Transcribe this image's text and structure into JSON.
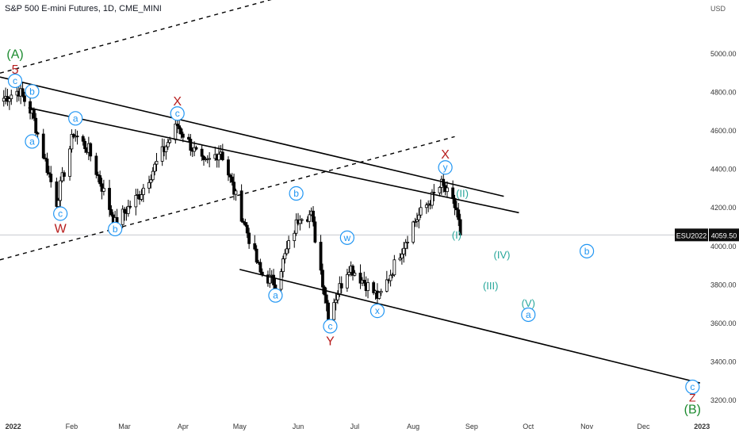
{
  "header": {
    "title": "S&P 500 E-mini Futures, 1D, CME_MINI"
  },
  "chart_data": {
    "type": "candlestick",
    "currency": "USD",
    "price_axis": {
      "ticks": [
        5000,
        4800,
        4600,
        4400,
        4200,
        4000,
        3800,
        3600,
        3400,
        3200
      ],
      "tick_labels": [
        "5000.00",
        "4800.00",
        "4600.00",
        "4400.00",
        "4200.00",
        "4000.00",
        "3800.00",
        "3600.00",
        "3400.00",
        "3200.00"
      ],
      "range": [
        3130,
        5280
      ]
    },
    "time_axis": {
      "labels": [
        {
          "text": "2022",
          "bold": true,
          "date": "2022-01-01"
        },
        {
          "text": "Feb",
          "date": "2022-02-01"
        },
        {
          "text": "Mar",
          "date": "2022-03-01"
        },
        {
          "text": "Apr",
          "date": "2022-04-01"
        },
        {
          "text": "May",
          "date": "2022-05-01"
        },
        {
          "text": "Jun",
          "date": "2022-06-01"
        },
        {
          "text": "Jul",
          "date": "2022-07-01"
        },
        {
          "text": "Aug",
          "date": "2022-08-01"
        },
        {
          "text": "Sep",
          "date": "2022-09-01"
        },
        {
          "text": "Oct",
          "date": "2022-10-01"
        },
        {
          "text": "Nov",
          "date": "2022-11-01"
        },
        {
          "text": "Dec",
          "date": "2022-12-01"
        },
        {
          "text": "2023",
          "bold": true,
          "date": "2023-01-01"
        }
      ],
      "range": [
        "2021-12-25",
        "2023-01-03"
      ]
    },
    "last_price": {
      "symbol": "ESU2022",
      "value": "4059.50",
      "price": 4059.5
    },
    "wave_points": [
      [
        "2021-12-27",
        4770
      ],
      [
        "2022-01-04",
        4810
      ],
      [
        "2022-01-11",
        4690
      ],
      [
        "2022-01-24",
        4230
      ],
      [
        "2022-02-02",
        4590
      ],
      [
        "2022-02-10",
        4500
      ],
      [
        "2022-02-24",
        4120
      ],
      [
        "2022-03-09",
        4270
      ],
      [
        "2022-03-29",
        4630
      ],
      [
        "2022-04-12",
        4420
      ],
      [
        "2022-04-21",
        4500
      ],
      [
        "2022-05-12",
        3860
      ],
      [
        "2022-05-20",
        3810
      ],
      [
        "2022-06-02",
        4170
      ],
      [
        "2022-06-08",
        4160
      ],
      [
        "2022-06-17",
        3650
      ],
      [
        "2022-06-28",
        3900
      ],
      [
        "2022-07-14",
        3730
      ],
      [
        "2022-08-01",
        4120
      ],
      [
        "2022-08-16",
        4320
      ],
      [
        "2022-08-24",
        4190
      ],
      [
        "2022-08-26",
        4060
      ]
    ],
    "trend_lines": [
      {
        "style": "solid",
        "p1": [
          "2021-12-25",
          4880
        ],
        "p2": [
          "2022-09-18",
          4260
        ]
      },
      {
        "style": "solid",
        "p1": [
          "2022-01-09",
          4720
        ],
        "p2": [
          "2022-09-26",
          4175
        ]
      },
      {
        "style": "solid",
        "p1": [
          "2022-05-01",
          3880
        ],
        "p2": [
          "2022-12-31",
          3290
        ]
      },
      {
        "style": "dashed",
        "p1": [
          "2021-12-25",
          4900
        ],
        "p2": [
          "2022-07-01",
          5400
        ]
      },
      {
        "style": "dashed",
        "p1": [
          "2021-12-25",
          3930
        ],
        "p2": [
          "2022-08-23",
          4570
        ]
      }
    ],
    "annotations": [
      {
        "text": "(A)",
        "kind": "plain",
        "color": "#1b8a2e",
        "date": "2022-01-02",
        "price": 5000,
        "size": 16
      },
      {
        "text": "5",
        "kind": "plain",
        "color": "#b71c1c",
        "date": "2022-01-02",
        "price": 4920,
        "size": 16
      },
      {
        "text": "c",
        "kind": "circle",
        "color": "#2196f3",
        "date": "2022-01-02",
        "price": 4860
      },
      {
        "text": "b",
        "kind": "circle",
        "color": "#2196f3",
        "date": "2022-01-11",
        "price": 4805
      },
      {
        "text": "a",
        "kind": "circle",
        "color": "#2196f3",
        "date": "2022-01-11",
        "price": 4545
      },
      {
        "text": "a",
        "kind": "circle",
        "color": "#2196f3",
        "date": "2022-02-03",
        "price": 4665
      },
      {
        "text": "c",
        "kind": "circle",
        "color": "#2196f3",
        "date": "2022-01-26",
        "price": 4170
      },
      {
        "text": "W",
        "kind": "plain",
        "color": "#b71c1c",
        "date": "2022-01-26",
        "price": 4095,
        "size": 16
      },
      {
        "text": "b",
        "kind": "circle",
        "color": "#2196f3",
        "date": "2022-02-24",
        "price": 4090
      },
      {
        "text": "X",
        "kind": "plain",
        "color": "#b71c1c",
        "date": "2022-03-29",
        "price": 4755,
        "size": 16
      },
      {
        "text": "c",
        "kind": "circle",
        "color": "#2196f3",
        "date": "2022-03-29",
        "price": 4690
      },
      {
        "text": "b",
        "kind": "circle",
        "color": "#2196f3",
        "date": "2022-05-31",
        "price": 4275
      },
      {
        "text": "w",
        "kind": "circle",
        "color": "#2196f3",
        "date": "2022-06-27",
        "price": 4045
      },
      {
        "text": "a",
        "kind": "circle",
        "color": "#2196f3",
        "date": "2022-05-20",
        "price": 3745
      },
      {
        "text": "c",
        "kind": "circle",
        "color": "#2196f3",
        "date": "2022-06-18",
        "price": 3585
      },
      {
        "text": "Y",
        "kind": "plain",
        "color": "#b71c1c",
        "date": "2022-06-18",
        "price": 3510,
        "size": 16
      },
      {
        "text": "x",
        "kind": "circle",
        "color": "#2196f3",
        "date": "2022-07-13",
        "price": 3665
      },
      {
        "text": "X",
        "kind": "plain",
        "color": "#b71c1c",
        "date": "2022-08-18",
        "price": 4480,
        "size": 16
      },
      {
        "text": "y",
        "kind": "circle",
        "color": "#2196f3",
        "date": "2022-08-18",
        "price": 4410
      },
      {
        "text": "(II)",
        "kind": "plain",
        "color": "#26a69a",
        "date": "2022-08-27",
        "price": 4275,
        "size": 13
      },
      {
        "text": "(I)",
        "kind": "plain",
        "color": "#26a69a",
        "date": "2022-08-24",
        "price": 4060,
        "size": 13
      },
      {
        "text": "(IV)",
        "kind": "plain",
        "color": "#26a69a",
        "date": "2022-09-17",
        "price": 3955,
        "size": 13
      },
      {
        "text": "(III)",
        "kind": "plain",
        "color": "#26a69a",
        "date": "2022-09-11",
        "price": 3795,
        "size": 13
      },
      {
        "text": "(V)",
        "kind": "plain",
        "color": "#26a69a",
        "date": "2022-10-01",
        "price": 3705,
        "size": 13
      },
      {
        "text": "a",
        "kind": "circle",
        "color": "#2196f3",
        "date": "2022-10-01",
        "price": 3645
      },
      {
        "text": "b",
        "kind": "circle",
        "color": "#2196f3",
        "date": "2022-11-01",
        "price": 3975
      },
      {
        "text": "c",
        "kind": "circle",
        "color": "#2196f3",
        "date": "2022-12-27",
        "price": 3270
      },
      {
        "text": "Z",
        "kind": "plain",
        "color": "#b71c1c",
        "date": "2022-12-27",
        "price": 3215,
        "size": 14
      },
      {
        "text": "(B)",
        "kind": "plain",
        "color": "#1b8a2e",
        "date": "2022-12-27",
        "price": 3155,
        "size": 16
      }
    ]
  }
}
